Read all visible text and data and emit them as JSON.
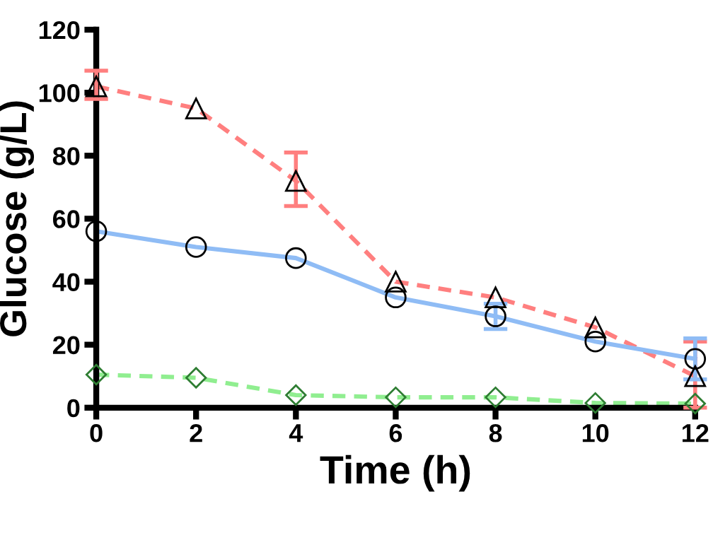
{
  "chart_data": {
    "type": "line",
    "xlabel": "Time (h)",
    "ylabel": "Glucose (g/L)",
    "x": [
      0,
      2,
      4,
      6,
      8,
      10,
      12
    ],
    "xlim": [
      0,
      12
    ],
    "xticks": [
      0,
      2,
      4,
      6,
      8,
      10,
      12
    ],
    "ylim": [
      0,
      120
    ],
    "yticks": [
      0,
      20,
      40,
      60,
      80,
      100,
      120
    ],
    "grid": false,
    "legend": false,
    "series": [
      {
        "color": "#ff7f7f",
        "marker": "triangle",
        "line_style": "dashed",
        "values": [
          102,
          95,
          72,
          40,
          35,
          25.5,
          10
        ],
        "errors": [
          [
            98,
            107
          ],
          null,
          [
            64,
            81
          ],
          null,
          null,
          null,
          [
            0,
            21
          ]
        ]
      },
      {
        "color": "#8fbcf5",
        "marker": "circle",
        "line_style": "solid",
        "values": [
          56,
          51,
          47.5,
          35,
          29,
          21,
          15.5
        ],
        "errors": [
          null,
          null,
          null,
          null,
          [
            25,
            33
          ],
          null,
          [
            9,
            22
          ]
        ]
      },
      {
        "color": "#90ee90",
        "marker": "diamond",
        "line_style": "dashed",
        "values": [
          10.5,
          9.5,
          4,
          3.3,
          3.3,
          1.5,
          1.3
        ]
      }
    ]
  }
}
